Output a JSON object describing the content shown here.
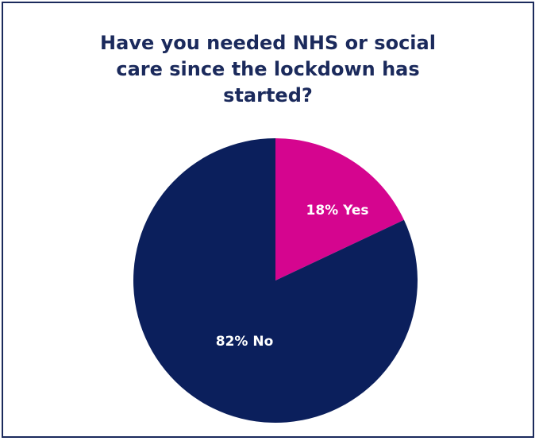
{
  "chart_data": {
    "type": "pie",
    "title": "Have you needed NHS or social care since the lockdown has started?",
    "slices": [
      {
        "label": "Yes",
        "value": 18,
        "display": "18% Yes",
        "color": "#d5058f"
      },
      {
        "label": "No",
        "value": 82,
        "display": "82% No",
        "color": "#0b1f5c"
      }
    ],
    "legend": "none",
    "colors": {
      "frame": "#1b2a5c",
      "title": "#1b2a5c"
    }
  }
}
